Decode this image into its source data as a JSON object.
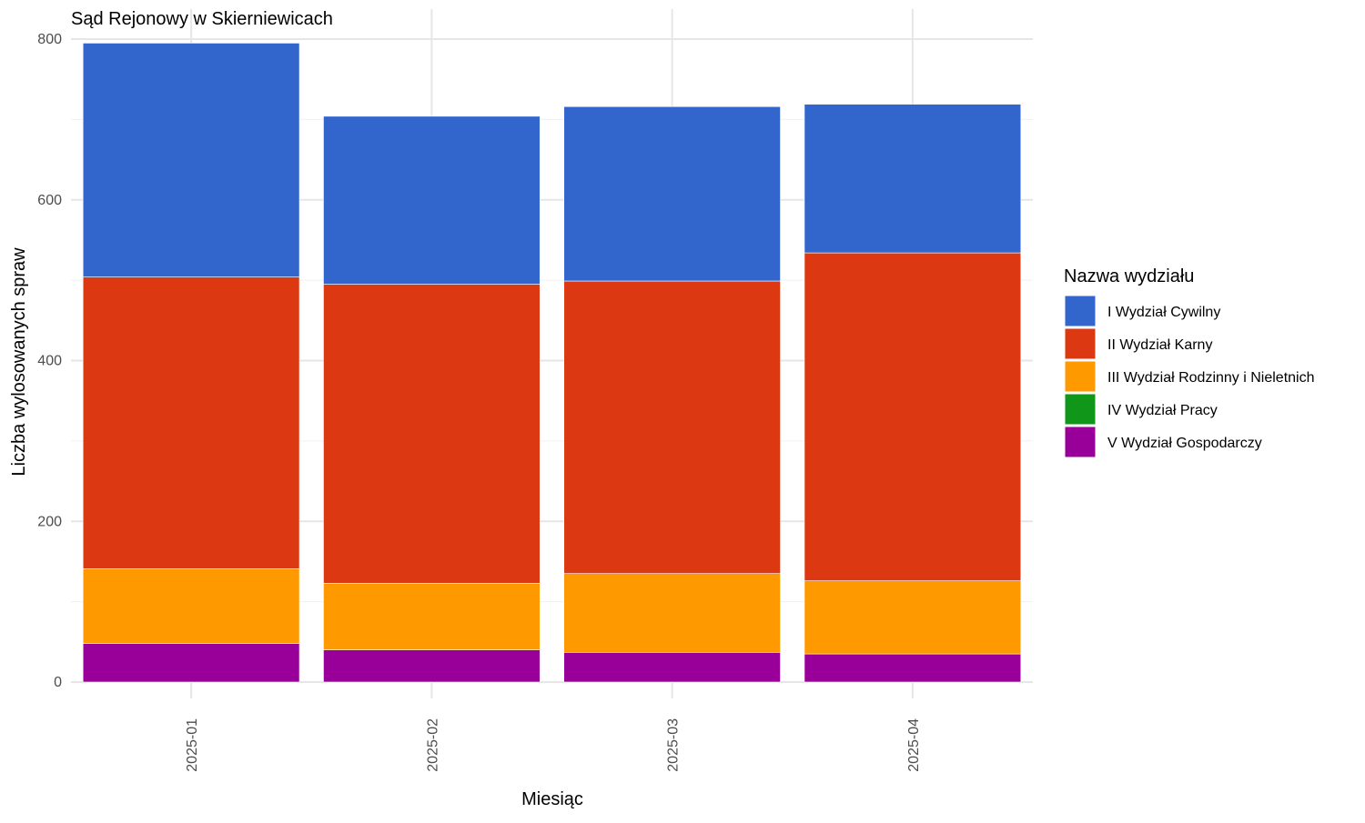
{
  "chart_data": {
    "type": "bar",
    "stacked": true,
    "title": "Sąd Rejonowy w Skierniewicach",
    "xlabel": "Miesiąc",
    "ylabel": "Liczba wylosowanych spraw",
    "ylim": [
      0,
      820
    ],
    "y_ticks": [
      0,
      200,
      400,
      600,
      800
    ],
    "grid": true,
    "legend_placement": "right",
    "legend_title": "Nazwa wydziału",
    "categories": [
      "2025-01",
      "2025-02",
      "2025-03",
      "2025-04"
    ],
    "series": [
      {
        "name": "I Wydział Cywilny",
        "color": "#3366CC",
        "values": [
          291,
          209,
          217,
          185
        ]
      },
      {
        "name": "II Wydział Karny",
        "color": "#DC3912",
        "values": [
          363,
          372,
          364,
          408
        ]
      },
      {
        "name": "III Wydział Rodzinny i Nieletnich",
        "color": "#FF9900",
        "values": [
          93,
          83,
          98,
          91
        ]
      },
      {
        "name": "IV Wydział Pracy",
        "color": "#109618",
        "values": [
          0,
          0,
          0,
          0
        ]
      },
      {
        "name": "V Wydział Gospodarczy",
        "color": "#990099",
        "values": [
          48,
          40,
          37,
          35
        ]
      }
    ]
  }
}
